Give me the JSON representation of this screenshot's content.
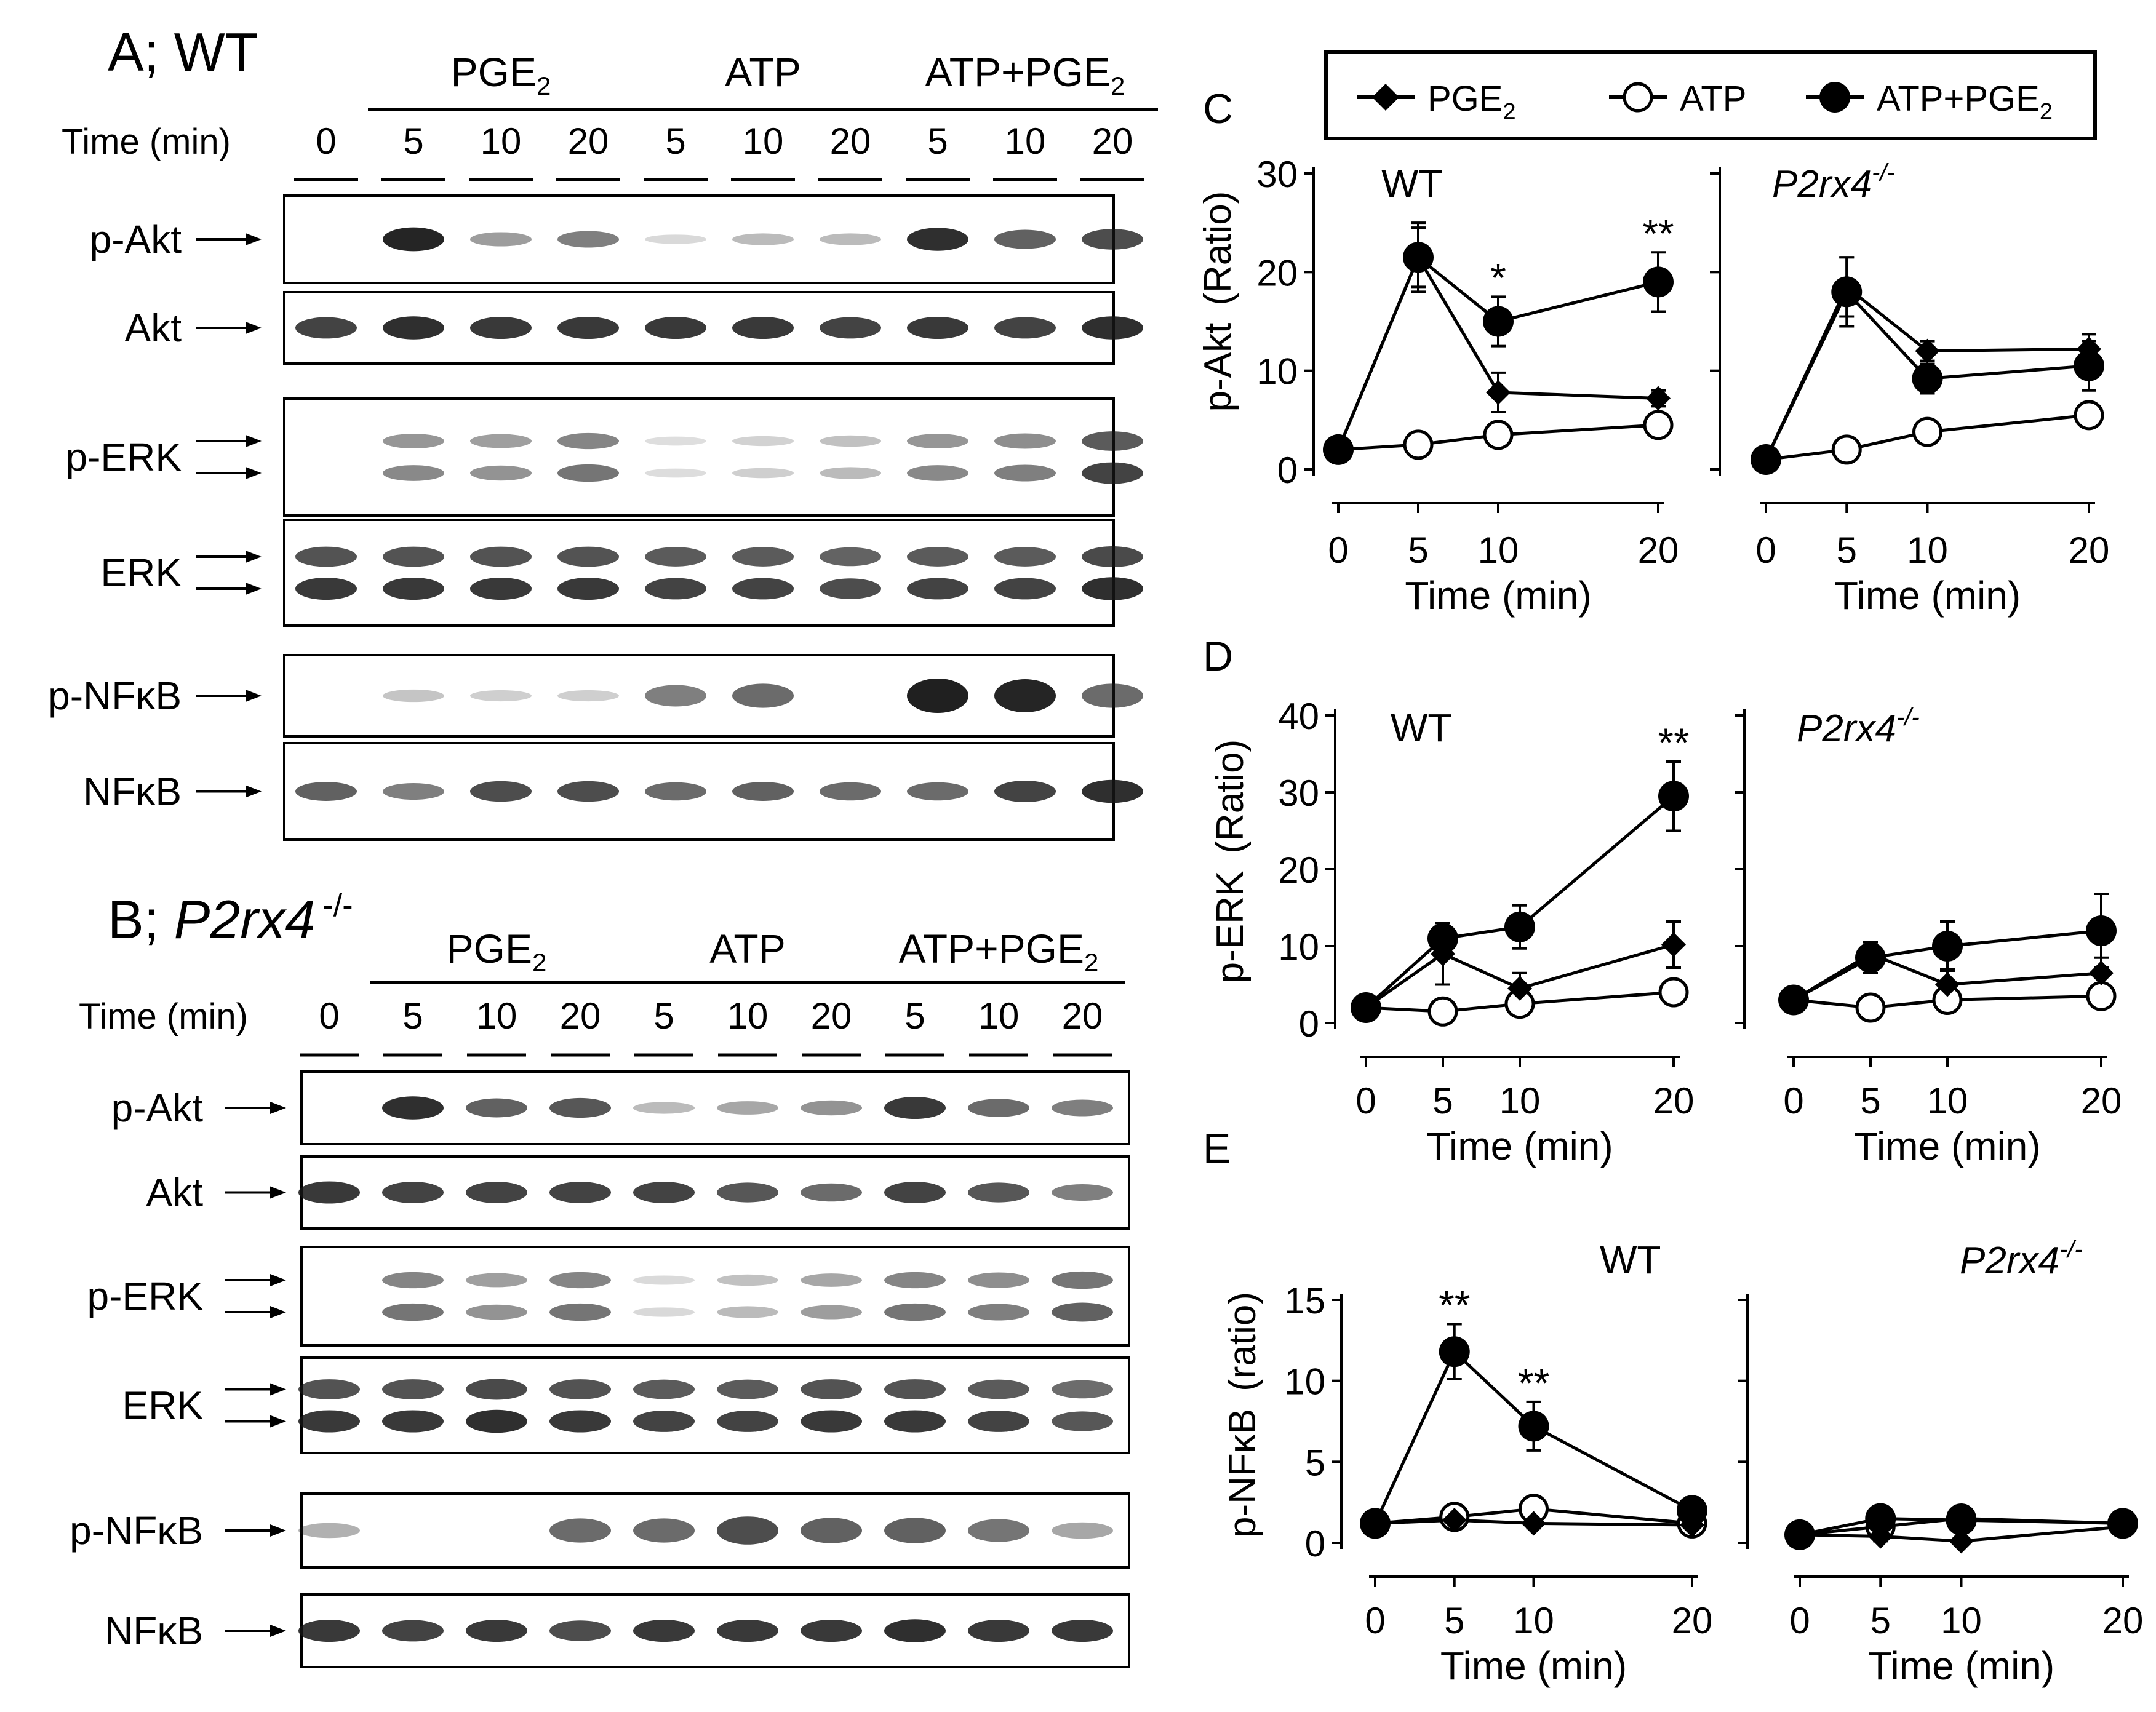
{
  "colors": {
    "ink": "#000000",
    "band": "#141414",
    "background": "#ffffff"
  },
  "common": {
    "arrow": "→",
    "time_axis": "Time (min)",
    "wt": "WT",
    "ko": "P2rx4",
    "ko_sup": "-/-",
    "sig1": "*",
    "sig2": "**"
  },
  "legend": {
    "items": [
      {
        "label": "PGE",
        "sub": "2",
        "marker": "diamond"
      },
      {
        "label": "ATP",
        "sub": "",
        "marker": "open-circle"
      },
      {
        "label": "ATP+PGE",
        "sub": "2",
        "marker": "filled-circle"
      }
    ]
  },
  "blots": [
    {
      "panel_label": "A; WT",
      "panel_prefix": "A; ",
      "genotype": "WT",
      "genotype_sup": "",
      "treatments": [
        {
          "name": "PGE",
          "sub": "2"
        },
        {
          "name": "ATP",
          "sub": ""
        },
        {
          "name": "ATP+PGE",
          "sub": "2"
        }
      ],
      "time_label": "Time (min)",
      "lanes": [
        "0",
        "5",
        "10",
        "20",
        "5",
        "10",
        "20",
        "5",
        "10",
        "20"
      ],
      "rows": [
        {
          "label": "p-Akt",
          "arrows": 1
        },
        {
          "label": "Akt",
          "arrows": 1
        },
        {
          "label": "p-ERK",
          "arrows": 2
        },
        {
          "label": "ERK",
          "arrows": 2
        },
        {
          "label": "p-NFκB",
          "arrows": 1
        },
        {
          "label": "NFκB",
          "arrows": 1
        }
      ],
      "intensity": {
        "p-Akt": [
          0.0,
          0.95,
          0.35,
          0.5,
          0.05,
          0.2,
          0.2,
          0.9,
          0.65,
          0.75
        ],
        "Akt": [
          0.8,
          0.9,
          0.85,
          0.85,
          0.85,
          0.85,
          0.8,
          0.85,
          0.8,
          0.9
        ],
        "p-ERK": [
          0.0,
          0.45,
          0.4,
          0.55,
          0.03,
          0.1,
          0.2,
          0.45,
          0.5,
          0.8
        ],
        "ERK": [
          0.85,
          0.85,
          0.85,
          0.85,
          0.8,
          0.8,
          0.75,
          0.8,
          0.8,
          0.9
        ],
        "p-NFκB": [
          0.0,
          0.15,
          0.1,
          0.1,
          0.5,
          0.6,
          0.0,
          1.0,
          0.95,
          0.6
        ],
        "NFκB": [
          0.65,
          0.5,
          0.75,
          0.75,
          0.6,
          0.65,
          0.6,
          0.6,
          0.8,
          0.9
        ]
      }
    },
    {
      "panel_label": "B; P2rx4 -/-",
      "panel_prefix": "B; ",
      "genotype": "P2rx4",
      "genotype_sup": "-/-",
      "treatments": [
        {
          "name": "PGE",
          "sub": "2"
        },
        {
          "name": "ATP",
          "sub": ""
        },
        {
          "name": "ATP+PGE",
          "sub": "2"
        }
      ],
      "time_label": "Time (min)",
      "lanes": [
        "0",
        "5",
        "10",
        "20",
        "5",
        "10",
        "20",
        "5",
        "10",
        "20"
      ],
      "rows": [
        {
          "label": "p-Akt",
          "arrows": 1
        },
        {
          "label": "Akt",
          "arrows": 1
        },
        {
          "label": "p-ERK",
          "arrows": 2
        },
        {
          "label": "ERK",
          "arrows": 2
        },
        {
          "label": "p-NFκB",
          "arrows": 1
        },
        {
          "label": "NFκB",
          "arrows": 1
        }
      ],
      "intensity": {
        "p-Akt": [
          0.0,
          0.9,
          0.65,
          0.7,
          0.2,
          0.3,
          0.4,
          0.85,
          0.6,
          0.5
        ],
        "Akt": [
          0.85,
          0.8,
          0.8,
          0.8,
          0.8,
          0.7,
          0.6,
          0.8,
          0.7,
          0.5
        ],
        "p-ERK": [
          0.0,
          0.55,
          0.4,
          0.55,
          0.05,
          0.2,
          0.35,
          0.55,
          0.5,
          0.65
        ],
        "ERK": [
          0.85,
          0.85,
          0.9,
          0.85,
          0.8,
          0.8,
          0.85,
          0.85,
          0.8,
          0.7
        ],
        "p-NFκB": [
          0.25,
          0.0,
          0.0,
          0.6,
          0.6,
          0.75,
          0.65,
          0.65,
          0.55,
          0.3
        ],
        "NFκB": [
          0.85,
          0.8,
          0.85,
          0.75,
          0.85,
          0.85,
          0.85,
          0.9,
          0.85,
          0.85
        ]
      }
    }
  ],
  "charts": [
    {
      "letter": "C",
      "ylabel": "p-Akt (Ratio)",
      "ylabel_main": "p-Akt",
      "ylabel_unit": "(Ratio)",
      "yticks": [
        "0",
        "10",
        "20",
        "30"
      ],
      "xticks": [
        "0",
        "5",
        "10",
        "20"
      ],
      "xlabel": "Time (min)"
    },
    {
      "letter": "D",
      "ylabel": "p-ERK (Ratio)",
      "ylabel_main": "p-ERK",
      "ylabel_unit": "(Ratio)",
      "yticks": [
        "0",
        "10",
        "20",
        "30",
        "40"
      ],
      "xticks": [
        "0",
        "5",
        "10",
        "20"
      ],
      "xlabel": "Time (min)"
    },
    {
      "letter": "E",
      "ylabel": "p-NFκB (ratio)",
      "ylabel_main": "p-NFκB",
      "ylabel_unit": "(ratio)",
      "yticks": [
        "0",
        "5",
        "10",
        "15"
      ],
      "xticks": [
        "0",
        "5",
        "10",
        "20"
      ],
      "xlabel": "Time (min)"
    }
  ],
  "chart_data": [
    {
      "type": "line",
      "panel": "C",
      "title": "WT",
      "xlabel": "Time (min)",
      "ylabel": "p-Akt (Ratio)",
      "x": [
        0,
        5,
        10,
        20
      ],
      "xlim": [
        0,
        20
      ],
      "ylim": [
        0,
        30
      ],
      "yticks": [
        0,
        10,
        20,
        30
      ],
      "series": [
        {
          "name": "PGE2",
          "marker": "diamond",
          "values": [
            2,
            21.5,
            7.8,
            7.2
          ],
          "err": [
            0,
            3,
            2,
            0.8
          ]
        },
        {
          "name": "ATP",
          "marker": "open-circle",
          "values": [
            2,
            2.5,
            3.5,
            4.5
          ],
          "err": [
            0,
            0.5,
            0.7,
            0.8
          ]
        },
        {
          "name": "ATP+PGE2",
          "marker": "filled-circle",
          "values": [
            2,
            21.5,
            15,
            19
          ],
          "err": [
            0,
            3.5,
            2.5,
            3
          ]
        }
      ],
      "annotations": [
        {
          "x": 10,
          "text": "*"
        },
        {
          "x": 20,
          "text": "**"
        }
      ]
    },
    {
      "type": "line",
      "panel": "C",
      "title": "P2rx4-/-",
      "xlabel": "Time (min)",
      "x": [
        0,
        5,
        10,
        20
      ],
      "xlim": [
        0,
        20
      ],
      "ylim": [
        0,
        30
      ],
      "series": [
        {
          "name": "PGE2",
          "marker": "diamond",
          "values": [
            1,
            18.5,
            12,
            12.2
          ],
          "err": [
            0,
            3,
            1,
            1.5
          ]
        },
        {
          "name": "ATP",
          "marker": "open-circle",
          "values": [
            1,
            2,
            3.8,
            5.5
          ],
          "err": [
            0,
            0.5,
            0.6,
            0.8
          ]
        },
        {
          "name": "ATP+PGE2",
          "marker": "filled-circle",
          "values": [
            1,
            18,
            9.2,
            10.5
          ],
          "err": [
            0,
            3.5,
            1.5,
            2.5
          ]
        }
      ]
    },
    {
      "type": "line",
      "panel": "D",
      "title": "WT",
      "xlabel": "Time (min)",
      "ylabel": "p-ERK (Ratio)",
      "x": [
        0,
        5,
        10,
        20
      ],
      "xlim": [
        0,
        20
      ],
      "ylim": [
        0,
        40
      ],
      "yticks": [
        0,
        10,
        20,
        30,
        40
      ],
      "series": [
        {
          "name": "PGE2",
          "marker": "diamond",
          "values": [
            2,
            9,
            4.5,
            10.2
          ],
          "err": [
            0,
            4,
            2,
            3
          ]
        },
        {
          "name": "ATP",
          "marker": "open-circle",
          "values": [
            2,
            1.5,
            2.5,
            4
          ],
          "err": [
            0,
            0.5,
            0.5,
            0.8
          ]
        },
        {
          "name": "ATP+PGE2",
          "marker": "filled-circle",
          "values": [
            2,
            11,
            12.5,
            29.5
          ],
          "err": [
            0,
            2,
            2.8,
            4.5
          ]
        }
      ],
      "annotations": [
        {
          "x": 20,
          "text": "**"
        }
      ]
    },
    {
      "type": "line",
      "panel": "D",
      "title": "P2rx4-/-",
      "xlabel": "Time (min)",
      "x": [
        0,
        5,
        10,
        20
      ],
      "xlim": [
        0,
        20
      ],
      "ylim": [
        0,
        40
      ],
      "series": [
        {
          "name": "PGE2",
          "marker": "diamond",
          "values": [
            3,
            9,
            5,
            6.5
          ],
          "err": [
            0,
            1,
            2,
            2
          ]
        },
        {
          "name": "ATP",
          "marker": "open-circle",
          "values": [
            3,
            2,
            3,
            3.5
          ],
          "err": [
            0,
            0.5,
            0.5,
            0.5
          ]
        },
        {
          "name": "ATP+PGE2",
          "marker": "filled-circle",
          "values": [
            3,
            8.5,
            10,
            12
          ],
          "err": [
            0,
            2,
            3.2,
            4.8
          ]
        }
      ]
    },
    {
      "type": "line",
      "panel": "E",
      "title": "WT",
      "xlabel": "Time (min)",
      "ylabel": "p-NFκB (ratio)",
      "x": [
        0,
        5,
        10,
        20
      ],
      "xlim": [
        0,
        20
      ],
      "ylim": [
        0,
        15
      ],
      "yticks": [
        0,
        5,
        10,
        15
      ],
      "series": [
        {
          "name": "PGE2",
          "marker": "diamond",
          "values": [
            1.2,
            1.4,
            1.2,
            1.1
          ],
          "err": [
            0,
            0.3,
            0.3,
            0.3
          ]
        },
        {
          "name": "ATP",
          "marker": "open-circle",
          "values": [
            1.2,
            1.6,
            2.1,
            1.2
          ],
          "err": [
            0,
            0.4,
            0.4,
            0.3
          ]
        },
        {
          "name": "ATP+PGE2",
          "marker": "filled-circle",
          "values": [
            1.2,
            11.8,
            7.2,
            2
          ],
          "err": [
            0,
            1.7,
            1.5,
            0.8
          ]
        }
      ],
      "annotations": [
        {
          "x": 5,
          "text": "**"
        },
        {
          "x": 10,
          "text": "**"
        }
      ]
    },
    {
      "type": "line",
      "panel": "E",
      "title": "P2rx4-/-",
      "xlabel": "Time (min)",
      "x": [
        0,
        5,
        10,
        20
      ],
      "xlim": [
        0,
        20
      ],
      "ylim": [
        0,
        15
      ],
      "series": [
        {
          "name": "PGE2",
          "marker": "diamond",
          "values": [
            0.5,
            0.4,
            0.1,
            1
          ],
          "err": [
            0,
            0.3,
            0.2,
            0.2
          ]
        },
        {
          "name": "ATP",
          "marker": "open-circle",
          "values": [
            0.5,
            1,
            1.5,
            1.2
          ],
          "err": [
            0,
            0.3,
            0.3,
            0.2
          ]
        },
        {
          "name": "ATP+PGE2",
          "marker": "filled-circle",
          "values": [
            0.5,
            1.5,
            1.4,
            1.2
          ],
          "err": [
            0,
            0.3,
            0.3,
            0.2
          ]
        }
      ]
    }
  ]
}
